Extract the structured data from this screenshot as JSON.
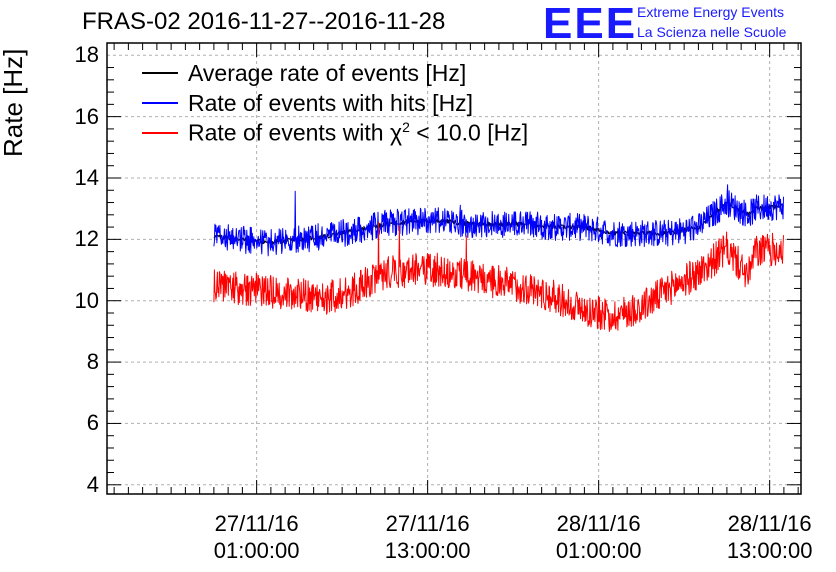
{
  "title": "FRAS-02 2016-11-27--2016-11-28",
  "logo": {
    "mark": "EEE",
    "line1": "Extreme Energy Events",
    "line2": "La Scienza nelle Scuole"
  },
  "colors": {
    "average": "#000000",
    "hits": "#0000ff",
    "chi2": "#ff0000",
    "logo": "#1a1aff",
    "grid": "#b0b0b0"
  },
  "chart_data": {
    "type": "line",
    "title": "FRAS-02 2016-11-27--2016-11-28",
    "ylabel": "Rate [Hz]",
    "xlabel": "",
    "ylim": [
      3.7,
      18.4
    ],
    "xlim_hours": [
      -10.5,
      38.2
    ],
    "grid": true,
    "legend_position": "top-left",
    "yticks": [
      "4",
      "6",
      "8",
      "10",
      "12",
      "14",
      "16",
      "18"
    ],
    "xticks": [
      {
        "hour": 0,
        "date": "27/11/16",
        "time": "01:00:00"
      },
      {
        "hour": 12,
        "date": "27/11/16",
        "time": "13:00:00"
      },
      {
        "hour": 24,
        "date": "28/11/16",
        "time": "01:00:00"
      },
      {
        "hour": 36,
        "date": "28/11/16",
        "time": "13:00:00"
      }
    ],
    "x_hours": [
      -3,
      -1,
      1,
      3,
      5,
      7,
      9,
      11,
      13,
      15,
      17,
      19,
      21,
      23,
      25,
      27,
      29,
      31,
      33,
      34.5,
      35,
      37
    ],
    "series": [
      {
        "name": "Average rate of events [Hz]",
        "color": "#000000",
        "values": [
          12.1,
          12.0,
          11.9,
          12.0,
          12.1,
          12.3,
          12.5,
          12.6,
          12.6,
          12.5,
          12.5,
          12.5,
          12.4,
          12.4,
          12.2,
          12.2,
          12.2,
          12.4,
          13.2,
          12.8,
          13.0,
          13.1
        ]
      },
      {
        "name": "Rate of events with hits [Hz]",
        "color": "#0000ff",
        "values": [
          12.1,
          12.0,
          11.9,
          12.0,
          12.1,
          12.3,
          12.5,
          12.6,
          12.6,
          12.5,
          12.5,
          12.5,
          12.4,
          12.4,
          12.2,
          12.2,
          12.2,
          12.4,
          13.2,
          12.8,
          13.0,
          13.1
        ]
      },
      {
        "name": "Rate of events with χ² < 10.0 [Hz]",
        "color": "#ff0000",
        "values": [
          10.5,
          10.4,
          10.3,
          10.2,
          10.1,
          10.4,
          10.9,
          11.0,
          11.0,
          10.8,
          10.6,
          10.4,
          10.1,
          9.7,
          9.5,
          9.8,
          10.4,
          10.9,
          11.7,
          10.8,
          11.6,
          11.7
        ]
      }
    ]
  },
  "legend": [
    {
      "label": "Average rate of events [Hz]",
      "color": "#000000"
    },
    {
      "label": "Rate of events with hits [Hz]",
      "color": "#0000ff"
    },
    {
      "label_main": "Rate of events with χ",
      "label_sup": "2",
      "label_tail": " < 10.0 [Hz]",
      "color": "#ff0000"
    }
  ]
}
